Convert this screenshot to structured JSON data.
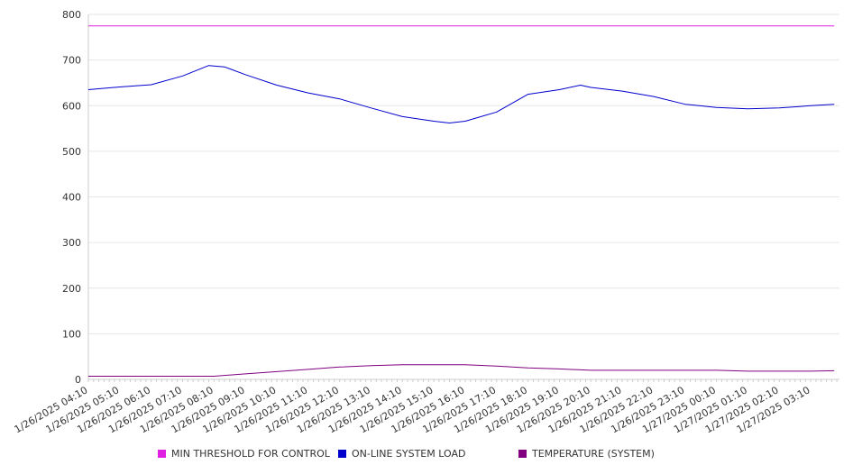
{
  "chart_data": {
    "type": "line",
    "x_ticks": [
      "1/26/2025 04:10",
      "1/26/2025 05:10",
      "1/26/2025 06:10",
      "1/26/2025 07:10",
      "1/26/2025 08:10",
      "1/26/2025 09:10",
      "1/26/2025 10:10",
      "1/26/2025 11:10",
      "1/26/2025 12:10",
      "1/26/2025 13:10",
      "1/26/2025 14:10",
      "1/26/2025 15:10",
      "1/26/2025 16:10",
      "1/26/2025 17:10",
      "1/26/2025 18:10",
      "1/26/2025 19:10",
      "1/26/2025 20:10",
      "1/26/2025 21:10",
      "1/26/2025 22:10",
      "1/26/2025 23:10",
      "1/27/2025 00:10",
      "1/27/2025 01:10",
      "1/27/2025 02:10",
      "1/27/2025 03:10"
    ],
    "y_ticks": [
      0,
      100,
      200,
      300,
      400,
      500,
      600,
      700,
      800
    ],
    "ylim": [
      0,
      800
    ],
    "grid": true,
    "legend_position": "bottom",
    "series": [
      {
        "name": "MIN THRESHOLD FOR CONTROL",
        "color": "#e020e0",
        "x": [
          "1/26/2025 04:10",
          "1/27/2025 03:55"
        ],
        "values": [
          775,
          775
        ]
      },
      {
        "name": "ON-LINE SYSTEM LOAD",
        "color": "#0000cc",
        "x": [
          "1/26/2025 04:10",
          "1/26/2025 05:10",
          "1/26/2025 06:10",
          "1/26/2025 07:10",
          "1/26/2025 08:00",
          "1/26/2025 08:30",
          "1/26/2025 09:10",
          "1/26/2025 10:10",
          "1/26/2025 11:10",
          "1/26/2025 12:10",
          "1/26/2025 13:10",
          "1/26/2025 14:10",
          "1/26/2025 15:10",
          "1/26/2025 15:40",
          "1/26/2025 16:10",
          "1/26/2025 17:10",
          "1/26/2025 18:10",
          "1/26/2025 19:10",
          "1/26/2025 19:50",
          "1/26/2025 20:10",
          "1/26/2025 21:10",
          "1/26/2025 22:10",
          "1/26/2025 23:10",
          "1/27/2025 00:10",
          "1/27/2025 01:10",
          "1/27/2025 02:10",
          "1/27/2025 03:10",
          "1/27/2025 03:55"
        ],
        "values": [
          635,
          641,
          646,
          665,
          688,
          685,
          668,
          645,
          628,
          615,
          595,
          576,
          566,
          562,
          566,
          586,
          625,
          635,
          645,
          640,
          632,
          620,
          603,
          596,
          593,
          595,
          600,
          603
        ]
      },
      {
        "name": "TEMPERATURE (SYSTEM)",
        "color": "#800080",
        "x": [
          "1/26/2025 04:10",
          "1/26/2025 06:10",
          "1/26/2025 08:10",
          "1/26/2025 09:10",
          "1/26/2025 10:10",
          "1/26/2025 11:10",
          "1/26/2025 12:10",
          "1/26/2025 13:10",
          "1/26/2025 14:10",
          "1/26/2025 15:10",
          "1/26/2025 16:10",
          "1/26/2025 17:10",
          "1/26/2025 18:10",
          "1/26/2025 19:10",
          "1/26/2025 20:10",
          "1/26/2025 21:10",
          "1/26/2025 22:10",
          "1/26/2025 23:10",
          "1/27/2025 00:10",
          "1/27/2025 01:10",
          "1/27/2025 02:10",
          "1/27/2025 03:10",
          "1/27/2025 03:55"
        ],
        "values": [
          7,
          7,
          7,
          12,
          17,
          22,
          27,
          30,
          32,
          32,
          32,
          29,
          25,
          23,
          20,
          20,
          20,
          20,
          20,
          18,
          18,
          18,
          19
        ]
      }
    ]
  }
}
